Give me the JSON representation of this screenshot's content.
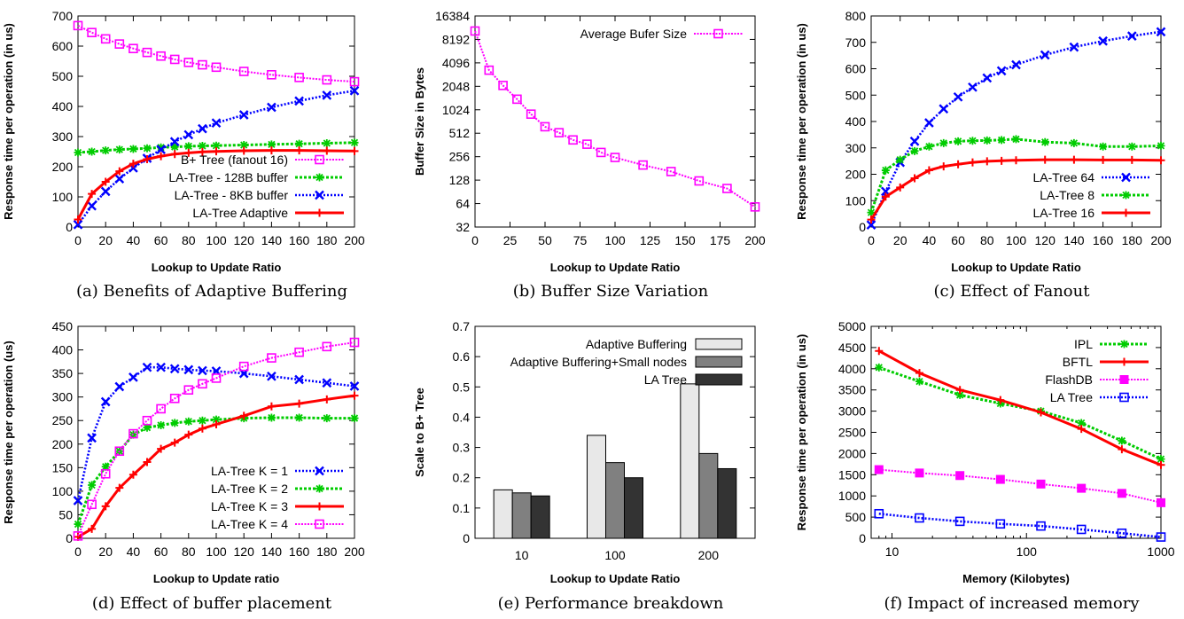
{
  "chart_data": [
    {
      "type": "line",
      "caption": "(a) Benefits of Adaptive Buffering",
      "xlabel": "Lookup to Update Ratio",
      "ylabel": "Response time per operation (in us)",
      "xlim": [
        0,
        200
      ],
      "ylim": [
        0,
        700
      ],
      "xticks": [
        0,
        20,
        40,
        60,
        80,
        100,
        120,
        140,
        160,
        180,
        200
      ],
      "yticks": [
        0,
        100,
        200,
        300,
        400,
        500,
        600,
        700
      ],
      "legend_position": "bottom-right",
      "series": [
        {
          "name": "B+ Tree (fanout 16)",
          "color": "#ff00ff",
          "marker": "square",
          "x": [
            0,
            10,
            20,
            30,
            40,
            50,
            60,
            70,
            80,
            90,
            100,
            120,
            140,
            160,
            180,
            200
          ],
          "y": [
            668,
            645,
            624,
            607,
            592,
            579,
            567,
            556,
            546,
            538,
            530,
            516,
            505,
            496,
            488,
            482
          ]
        },
        {
          "name": "LA-Tree - 128B buffer",
          "color": "#00cc00",
          "marker": "star",
          "x": [
            0,
            10,
            20,
            30,
            40,
            50,
            60,
            70,
            80,
            90,
            100,
            120,
            140,
            160,
            180,
            200
          ],
          "y": [
            247,
            250,
            254,
            257,
            259,
            261,
            264,
            266,
            268,
            269,
            270,
            272,
            274,
            276,
            278,
            280
          ]
        },
        {
          "name": "LA-Tree - 8KB buffer",
          "color": "#0000ff",
          "marker": "x",
          "x": [
            0,
            10,
            20,
            30,
            40,
            50,
            60,
            70,
            80,
            90,
            100,
            120,
            140,
            160,
            180,
            200
          ],
          "y": [
            8,
            70,
            118,
            160,
            196,
            228,
            257,
            283,
            306,
            326,
            345,
            372,
            397,
            418,
            437,
            452
          ]
        },
        {
          "name": "LA-Tree Adaptive",
          "color": "#ff0000",
          "marker": "plus",
          "x": [
            0,
            10,
            20,
            30,
            40,
            50,
            60,
            70,
            80,
            90,
            100,
            120,
            140,
            160,
            180,
            200
          ],
          "y": [
            25,
            110,
            150,
            185,
            210,
            225,
            235,
            242,
            246,
            249,
            251,
            253,
            254,
            254,
            253,
            252
          ]
        }
      ]
    },
    {
      "type": "line",
      "caption": "(b) Buffer Size Variation",
      "xlabel": "Lookup to Update Ratio",
      "ylabel": "Buffer Size in Bytes",
      "xlim": [
        0,
        200
      ],
      "ylim": [
        32,
        16384
      ],
      "yscale": "log2",
      "xticks": [
        0,
        25,
        50,
        75,
        100,
        125,
        150,
        175,
        200
      ],
      "yticks": [
        32,
        64,
        128,
        256,
        512,
        1024,
        2048,
        4096,
        8192,
        16384
      ],
      "legend_position": "top-right",
      "series": [
        {
          "name": "Average Bufer Size",
          "color": "#ff00ff",
          "marker": "square",
          "x": [
            0,
            10,
            20,
            30,
            40,
            50,
            60,
            70,
            80,
            90,
            100,
            120,
            140,
            160,
            180,
            200
          ],
          "y": [
            10500,
            3300,
            2100,
            1400,
            900,
            620,
            520,
            420,
            370,
            290,
            250,
            200,
            165,
            125,
            100,
            58
          ]
        }
      ]
    },
    {
      "type": "line",
      "caption": "(c) Effect of Fanout",
      "xlabel": "Lookup to Update Ratio",
      "ylabel": "Response time per operation (in us)",
      "xlim": [
        0,
        200
      ],
      "ylim": [
        0,
        800
      ],
      "xticks": [
        0,
        20,
        40,
        60,
        80,
        100,
        120,
        140,
        160,
        180,
        200
      ],
      "yticks": [
        0,
        100,
        200,
        300,
        400,
        500,
        600,
        700,
        800
      ],
      "legend_position": "bottom-right",
      "series": [
        {
          "name": "LA-Tree 64",
          "color": "#0000ff",
          "marker": "x",
          "x": [
            0,
            10,
            20,
            30,
            40,
            50,
            60,
            70,
            80,
            90,
            100,
            120,
            140,
            160,
            180,
            200
          ],
          "y": [
            8,
            135,
            245,
            325,
            395,
            448,
            493,
            530,
            565,
            592,
            615,
            652,
            682,
            705,
            724,
            740
          ]
        },
        {
          "name": "LA-Tree 8",
          "color": "#00cc00",
          "marker": "star",
          "x": [
            0,
            10,
            20,
            30,
            40,
            50,
            60,
            70,
            80,
            90,
            100,
            120,
            140,
            160,
            180,
            200
          ],
          "y": [
            55,
            215,
            255,
            288,
            305,
            318,
            325,
            327,
            328,
            330,
            333,
            322,
            318,
            305,
            305,
            308
          ]
        },
        {
          "name": "LA-Tree 16",
          "color": "#ff0000",
          "marker": "plus",
          "x": [
            0,
            10,
            20,
            30,
            40,
            50,
            60,
            70,
            80,
            90,
            100,
            120,
            140,
            160,
            180,
            200
          ],
          "y": [
            28,
            115,
            150,
            185,
            215,
            230,
            238,
            245,
            249,
            251,
            253,
            255,
            255,
            254,
            254,
            253
          ]
        }
      ]
    },
    {
      "type": "line",
      "caption": "(d) Effect of buffer placement",
      "xlabel": "Lookup to Update ratio",
      "ylabel": "Response time per operation (us)",
      "xlim": [
        0,
        200
      ],
      "ylim": [
        0,
        450
      ],
      "xticks": [
        0,
        20,
        40,
        60,
        80,
        100,
        120,
        140,
        160,
        180,
        200
      ],
      "yticks": [
        0,
        50,
        100,
        150,
        200,
        250,
        300,
        350,
        400,
        450
      ],
      "legend_position": "bottom-right",
      "series": [
        {
          "name": "LA-Tree K = 1",
          "color": "#0000ff",
          "marker": "x",
          "x": [
            0,
            10,
            20,
            30,
            40,
            50,
            60,
            70,
            80,
            90,
            100,
            120,
            140,
            160,
            180,
            200
          ],
          "y": [
            80,
            213,
            290,
            322,
            342,
            363,
            363,
            360,
            358,
            356,
            355,
            350,
            344,
            337,
            330,
            323
          ]
        },
        {
          "name": "LA-Tree K = 2",
          "color": "#00cc00",
          "marker": "star",
          "x": [
            0,
            10,
            20,
            30,
            40,
            50,
            60,
            70,
            80,
            90,
            100,
            120,
            140,
            160,
            180,
            200
          ],
          "y": [
            30,
            113,
            152,
            185,
            220,
            235,
            240,
            245,
            248,
            250,
            252,
            255,
            256,
            256,
            255,
            255
          ]
        },
        {
          "name": "LA-Tree K = 3",
          "color": "#ff0000",
          "marker": "plus",
          "x": [
            0,
            10,
            20,
            30,
            40,
            50,
            60,
            70,
            80,
            90,
            100,
            120,
            140,
            160,
            180,
            200
          ],
          "y": [
            3,
            20,
            68,
            107,
            135,
            162,
            190,
            203,
            220,
            233,
            242,
            260,
            280,
            286,
            295,
            303
          ]
        },
        {
          "name": "LA-Tree K = 4",
          "color": "#ff00ff",
          "marker": "square",
          "x": [
            0,
            10,
            20,
            30,
            40,
            50,
            60,
            70,
            80,
            90,
            100,
            120,
            140,
            160,
            180,
            200
          ],
          "y": [
            5,
            72,
            137,
            185,
            222,
            250,
            275,
            297,
            315,
            328,
            340,
            365,
            383,
            395,
            407,
            416
          ]
        }
      ]
    },
    {
      "type": "bar",
      "caption": "(e) Performance breakdown",
      "xlabel": "Lookup to Update Ratio",
      "ylabel": "Scale to B+ Tree",
      "ylim": [
        0,
        0.7
      ],
      "yticks": [
        "0",
        "0.1",
        "0.2",
        "0.3",
        "0.4",
        "0.5",
        "0.6",
        "0.7"
      ],
      "categories": [
        "10",
        "100",
        "200"
      ],
      "legend_position": "top-right",
      "series": [
        {
          "name": "Adaptive Buffering",
          "color": "#e8e8e8",
          "values": [
            0.16,
            0.34,
            0.51
          ]
        },
        {
          "name": "Adaptive Buffering+Small nodes",
          "color": "#808080",
          "values": [
            0.15,
            0.25,
            0.28
          ]
        },
        {
          "name": "LA Tree",
          "color": "#333333",
          "values": [
            0.14,
            0.2,
            0.23
          ]
        }
      ]
    },
    {
      "type": "line",
      "caption": "(f) Impact of increased memory",
      "xlabel": "Memory (Kilobytes)",
      "ylabel": "Response time per operation (in us)",
      "xscale": "log10",
      "xlim": [
        7,
        1000
      ],
      "ylim": [
        0,
        5000
      ],
      "xticks": [
        10,
        100,
        1000
      ],
      "yticks": [
        0,
        500,
        1000,
        1500,
        2000,
        2500,
        3000,
        3500,
        4000,
        4500,
        5000
      ],
      "legend_position": "top-right",
      "series": [
        {
          "name": "IPL",
          "color": "#00cc00",
          "marker": "star",
          "x": [
            8,
            16,
            32,
            64,
            128,
            256,
            512,
            1000
          ],
          "y": [
            4030,
            3700,
            3380,
            3180,
            3000,
            2720,
            2300,
            1870
          ]
        },
        {
          "name": "BFTL",
          "color": "#ff0000",
          "marker": "plus",
          "x": [
            8,
            16,
            32,
            64,
            128,
            256,
            512,
            1000
          ],
          "y": [
            4420,
            3900,
            3500,
            3260,
            2970,
            2580,
            2100,
            1730
          ]
        },
        {
          "name": "FlashDB",
          "color": "#ff00ff",
          "marker": "filledsquare",
          "x": [
            8,
            16,
            32,
            64,
            128,
            256,
            512,
            1000
          ],
          "y": [
            1620,
            1540,
            1480,
            1390,
            1280,
            1180,
            1060,
            840
          ]
        },
        {
          "name": "LA Tree",
          "color": "#0000ff",
          "marker": "square",
          "x": [
            8,
            16,
            32,
            64,
            128,
            256,
            512,
            1000
          ],
          "y": [
            580,
            480,
            400,
            340,
            290,
            210,
            120,
            30
          ]
        }
      ]
    }
  ]
}
